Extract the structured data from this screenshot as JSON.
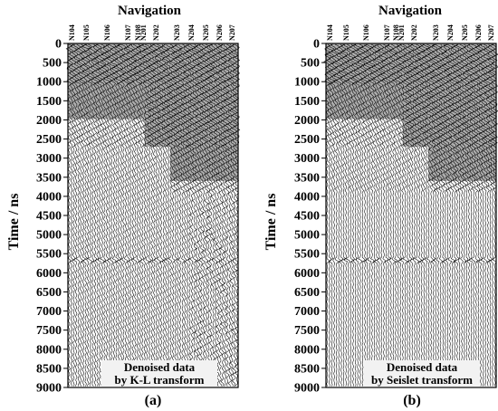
{
  "figure": {
    "panels": [
      {
        "id": "a",
        "title": "Navigation",
        "ylabel": "Time / ns",
        "trace_labels": [
          "N104",
          "N105",
          "N106",
          "N107",
          "N108",
          "N201",
          "N202",
          "N203",
          "N204",
          "N205",
          "N206",
          "N207"
        ],
        "y_ticks": [
          "0",
          "500",
          "1000",
          "1500",
          "2000",
          "2500",
          "3000",
          "3500",
          "4000",
          "4500",
          "5000",
          "5500",
          "6000",
          "6500",
          "7000",
          "7500",
          "8000",
          "8500",
          "9000"
        ],
        "caption_line1": "Denoised data",
        "caption_line2": "by K-L transform",
        "panel_label": "(a)"
      },
      {
        "id": "b",
        "title": "Navigation",
        "ylabel": "Time / ns",
        "trace_labels": [
          "N104",
          "N105",
          "N106",
          "N107",
          "N108",
          "N201",
          "N202",
          "N203",
          "N204",
          "N205",
          "N206",
          "N207"
        ],
        "y_ticks": [
          "0",
          "500",
          "1000",
          "1500",
          "2000",
          "2500",
          "3000",
          "3500",
          "4000",
          "4500",
          "5000",
          "5500",
          "6000",
          "6500",
          "7000",
          "7500",
          "8000",
          "8500",
          "9000"
        ],
        "caption_line1": "Denoised data",
        "caption_line2": "by Seislet transform",
        "panel_label": "(b)"
      }
    ]
  }
}
